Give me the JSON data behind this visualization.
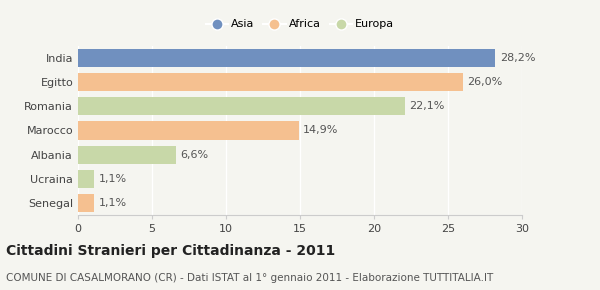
{
  "categories": [
    "India",
    "Egitto",
    "Romania",
    "Marocco",
    "Albania",
    "Ucraina",
    "Senegal"
  ],
  "values": [
    28.2,
    26.0,
    22.1,
    14.9,
    6.6,
    1.1,
    1.1
  ],
  "colors": [
    "#7090bf",
    "#f5c090",
    "#c8d8a8",
    "#f5c090",
    "#c8d8a8",
    "#c8d8a8",
    "#f5c090"
  ],
  "labels": [
    "28,2%",
    "26,0%",
    "22,1%",
    "14,9%",
    "6,6%",
    "1,1%",
    "1,1%"
  ],
  "legend": [
    {
      "label": "Asia",
      "color": "#7090bf"
    },
    {
      "label": "Africa",
      "color": "#f5c090"
    },
    {
      "label": "Europa",
      "color": "#c8d8a8"
    }
  ],
  "xlim": [
    0,
    30
  ],
  "xticks": [
    0,
    5,
    10,
    15,
    20,
    25,
    30
  ],
  "title": "Cittadini Stranieri per Cittadinanza - 2011",
  "subtitle": "COMUNE DI CASALMORANO (CR) - Dati ISTAT al 1° gennaio 2011 - Elaborazione TUTTITALIA.IT",
  "background_color": "#f5f5f0",
  "bar_height": 0.75,
  "title_fontsize": 10,
  "subtitle_fontsize": 7.5,
  "label_fontsize": 8,
  "tick_fontsize": 8
}
